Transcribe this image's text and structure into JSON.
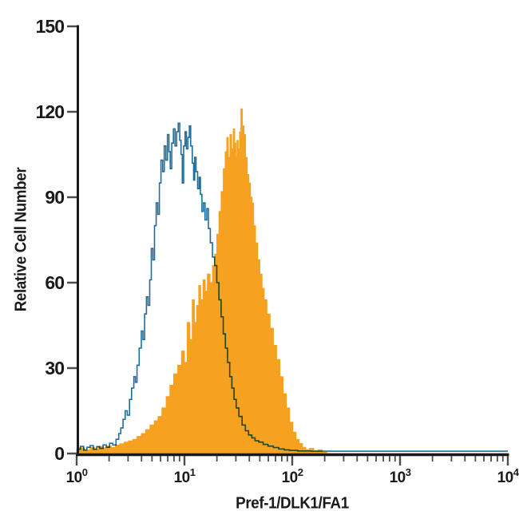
{
  "figure": {
    "background": "#ffffff",
    "xlabel": "Pref-1/DLK1/FA1",
    "ylabel": "Relative Cell Number"
  },
  "chart_data": {
    "type": "line",
    "subtype": "flow-cytometry-overlay-histogram",
    "title": "",
    "xlabel": "Pref-1/DLK1/FA1",
    "ylabel": "Relative Cell Number",
    "x_scale": "log10",
    "xlim_log10": [
      0,
      4
    ],
    "ylim": [
      0,
      150
    ],
    "y_ticks": [
      0,
      30,
      60,
      90,
      120,
      150
    ],
    "x_tick_base": "10",
    "x_major_tick_exponents": [
      0,
      1,
      2,
      3,
      4
    ],
    "x_minor_ticks_per_decade": [
      2,
      3,
      4,
      5,
      6,
      7,
      8,
      9
    ],
    "grid": false,
    "legend": false,
    "axis_color": "#1a1a1a",
    "tick_color": "#4d4d4d",
    "series": [
      {
        "name": "filled-histogram-stained",
        "style": "filled",
        "color": "#F6A11F",
        "blend": "source",
        "points": [
          [
            0.0,
            1.5
          ],
          [
            0.05,
            2
          ],
          [
            0.1,
            1.2
          ],
          [
            0.15,
            2.2
          ],
          [
            0.18,
            1.6
          ],
          [
            0.22,
            2.5
          ],
          [
            0.26,
            2
          ],
          [
            0.3,
            2.6
          ],
          [
            0.34,
            2.2
          ],
          [
            0.38,
            3
          ],
          [
            0.42,
            3.4
          ],
          [
            0.46,
            4
          ],
          [
            0.5,
            4.4
          ],
          [
            0.54,
            5
          ],
          [
            0.58,
            6
          ],
          [
            0.62,
            7
          ],
          [
            0.66,
            8.4
          ],
          [
            0.7,
            10
          ],
          [
            0.74,
            11.5
          ],
          [
            0.77,
            13
          ],
          [
            0.81,
            16
          ],
          [
            0.85,
            20
          ],
          [
            0.88,
            24
          ],
          [
            0.92,
            28
          ],
          [
            0.955,
            31
          ],
          [
            0.99,
            36
          ],
          [
            1.01,
            32
          ],
          [
            1.04,
            46
          ],
          [
            1.06,
            40
          ],
          [
            1.085,
            54
          ],
          [
            1.1,
            46
          ],
          [
            1.125,
            52
          ],
          [
            1.14,
            59
          ],
          [
            1.16,
            54
          ],
          [
            1.185,
            61
          ],
          [
            1.2,
            57
          ],
          [
            1.225,
            63
          ],
          [
            1.25,
            60
          ],
          [
            1.27,
            66
          ],
          [
            1.29,
            70
          ],
          [
            1.31,
            77
          ],
          [
            1.33,
            85
          ],
          [
            1.35,
            92
          ],
          [
            1.37,
            100
          ],
          [
            1.385,
            106
          ],
          [
            1.4,
            111
          ],
          [
            1.415,
            104
          ],
          [
            1.43,
            112
          ],
          [
            1.445,
            107
          ],
          [
            1.46,
            114
          ],
          [
            1.472,
            109
          ],
          [
            1.482,
            104
          ],
          [
            1.492,
            110
          ],
          [
            1.505,
            107
          ],
          [
            1.517,
            113
          ],
          [
            1.53,
            121
          ],
          [
            1.545,
            115
          ],
          [
            1.56,
            112
          ],
          [
            1.575,
            104
          ],
          [
            1.59,
            98
          ],
          [
            1.605,
            95
          ],
          [
            1.62,
            90
          ],
          [
            1.635,
            88
          ],
          [
            1.65,
            80
          ],
          [
            1.67,
            74
          ],
          [
            1.69,
            68
          ],
          [
            1.71,
            63
          ],
          [
            1.73,
            58
          ],
          [
            1.75,
            54
          ],
          [
            1.78,
            49
          ],
          [
            1.81,
            44
          ],
          [
            1.84,
            38
          ],
          [
            1.87,
            33
          ],
          [
            1.9,
            27
          ],
          [
            1.93,
            21
          ],
          [
            1.96,
            16
          ],
          [
            1.99,
            11
          ],
          [
            2.02,
            7.5
          ],
          [
            2.05,
            5
          ],
          [
            2.08,
            3.5
          ],
          [
            2.11,
            2.2
          ],
          [
            2.14,
            1.4
          ],
          [
            2.18,
            1.8
          ],
          [
            2.22,
            0.9
          ],
          [
            2.26,
            1.3
          ],
          [
            2.3,
            0.5
          ],
          [
            2.34,
            0
          ],
          [
            2.5,
            0
          ],
          [
            3.0,
            0
          ],
          [
            3.5,
            0
          ],
          [
            4.0,
            0
          ]
        ]
      },
      {
        "name": "open-histogram-control",
        "style": "open",
        "color": "#1E6F9E",
        "blend": "multiply",
        "points": [
          [
            0.0,
            3
          ],
          [
            0.02,
            1.5
          ],
          [
            0.05,
            2.5
          ],
          [
            0.08,
            1.2
          ],
          [
            0.11,
            2.2
          ],
          [
            0.14,
            2.8
          ],
          [
            0.17,
            1.5
          ],
          [
            0.2,
            2.4
          ],
          [
            0.23,
            1.8
          ],
          [
            0.26,
            3
          ],
          [
            0.29,
            2.2
          ],
          [
            0.32,
            3.6
          ],
          [
            0.35,
            3
          ],
          [
            0.38,
            5
          ],
          [
            0.4,
            7
          ],
          [
            0.42,
            9
          ],
          [
            0.44,
            12
          ],
          [
            0.46,
            15
          ],
          [
            0.48,
            13.5
          ],
          [
            0.5,
            19
          ],
          [
            0.52,
            23
          ],
          [
            0.54,
            27
          ],
          [
            0.55,
            25
          ],
          [
            0.57,
            31
          ],
          [
            0.59,
            37
          ],
          [
            0.61,
            43
          ],
          [
            0.62,
            40
          ],
          [
            0.64,
            49
          ],
          [
            0.655,
            55
          ],
          [
            0.67,
            52
          ],
          [
            0.685,
            61
          ],
          [
            0.7,
            72
          ],
          [
            0.715,
            68
          ],
          [
            0.73,
            80
          ],
          [
            0.745,
            88
          ],
          [
            0.76,
            84
          ],
          [
            0.775,
            95
          ],
          [
            0.79,
            103
          ],
          [
            0.805,
            99
          ],
          [
            0.82,
            108
          ],
          [
            0.835,
            103
          ],
          [
            0.85,
            112
          ],
          [
            0.862,
            106
          ],
          [
            0.875,
            100
          ],
          [
            0.89,
            109
          ],
          [
            0.905,
            114
          ],
          [
            0.92,
            108
          ],
          [
            0.935,
            113
          ],
          [
            0.95,
            116
          ],
          [
            0.962,
            110
          ],
          [
            0.975,
            105
          ],
          [
            0.985,
            95
          ],
          [
            1.0,
            108
          ],
          [
            1.012,
            113
          ],
          [
            1.025,
            107
          ],
          [
            1.04,
            111
          ],
          [
            1.05,
            115
          ],
          [
            1.065,
            108
          ],
          [
            1.08,
            102
          ],
          [
            1.09,
            96
          ],
          [
            1.1,
            104
          ],
          [
            1.115,
            99
          ],
          [
            1.13,
            93
          ],
          [
            1.142,
            97
          ],
          [
            1.155,
            91
          ],
          [
            1.17,
            85
          ],
          [
            1.182,
            88
          ],
          [
            1.2,
            82
          ],
          [
            1.215,
            86
          ],
          [
            1.23,
            79
          ],
          [
            1.25,
            74
          ],
          [
            1.27,
            69
          ],
          [
            1.29,
            66
          ],
          [
            1.31,
            60
          ],
          [
            1.33,
            54
          ],
          [
            1.35,
            48
          ],
          [
            1.37,
            42
          ],
          [
            1.39,
            37
          ],
          [
            1.41,
            32
          ],
          [
            1.43,
            27
          ],
          [
            1.45,
            23
          ],
          [
            1.47,
            19
          ],
          [
            1.49,
            16
          ],
          [
            1.52,
            13
          ],
          [
            1.55,
            10
          ],
          [
            1.58,
            8
          ],
          [
            1.61,
            6.5
          ],
          [
            1.64,
            5.5
          ],
          [
            1.67,
            4.5
          ],
          [
            1.71,
            4
          ],
          [
            1.75,
            3.2
          ],
          [
            1.8,
            2.6
          ],
          [
            1.85,
            2.1
          ],
          [
            1.9,
            1.6
          ],
          [
            1.95,
            1.3
          ],
          [
            2.0,
            1.1
          ],
          [
            2.1,
            0.9
          ],
          [
            2.25,
            0.8
          ],
          [
            2.5,
            0.8
          ],
          [
            2.75,
            0.8
          ],
          [
            3.0,
            0.8
          ],
          [
            3.25,
            0.8
          ],
          [
            3.5,
            0.8
          ],
          [
            3.75,
            0.8
          ],
          [
            4.0,
            0.8
          ]
        ]
      }
    ]
  }
}
